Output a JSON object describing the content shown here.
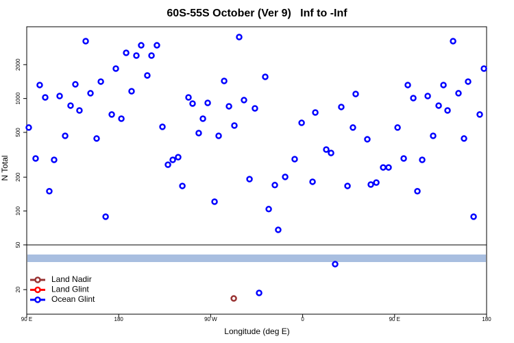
{
  "chart_data": {
    "type": "scatter",
    "title": "60S-55S October (Ver 9)   Inf to -Inf",
    "x_label": "Longitude (deg E)",
    "y_label": "N Total",
    "log_y": true,
    "legend": "bottom-left",
    "xlim": [
      90,
      540
    ],
    "ylim": [
      12.1,
      4345
    ],
    "xticks": [
      {
        "value": 90,
        "label": "90 E"
      },
      180,
      {
        "value": 270,
        "label": "90 W"
      },
      {
        "value": 360,
        "label": "0"
      },
      {
        "value": 450,
        "label": "90 E"
      },
      {
        "value": 540,
        "label": "180"
      }
    ],
    "yticks": [
      20,
      50,
      100,
      200,
      500,
      1000,
      2000
    ],
    "hline": 50,
    "band": {
      "value": 38,
      "color": "#a8bee0"
    },
    "series": [
      {
        "name": "Land Nadir",
        "color": "#993333",
        "x": [
          292.6
        ],
        "values": [
          16.7
        ]
      },
      {
        "name": "Land Glint",
        "color": "#ff0000",
        "x": [],
        "values": []
      },
      {
        "name": "Ocean Glint",
        "color": "#0000ff",
        "x": [
          92,
          98.7,
          102.7,
          108.1,
          112.1,
          116.8,
          122.2,
          127.6,
          132.9,
          137.6,
          141.6,
          147.7,
          152.4,
          158.4,
          162.5,
          167.2,
          173.2,
          177.2,
          182.6,
          187.3,
          192.6,
          197.3,
          202,
          208,
          212.1,
          217.4,
          222.8,
          228.2,
          232.9,
          238.2,
          242.3,
          248.3,
          252.3,
          258.3,
          262.4,
          267.1,
          273.8,
          277.8,
          283.2,
          287.9,
          293.2,
          297.9,
          302.6,
          308,
          313.3,
          323.4,
          326.8,
          332.8,
          336.1,
          342.9,
          352.2,
          359,
          369.7,
          372.4,
          383.1,
          387.8,
          391.8,
          397.8,
          403.9,
          409.2,
          411.9,
          423.3,
          426.7,
          432.1,
          438.8,
          444.1,
          452.9,
          458.9,
          462.9,
          468.3,
          472.3,
          477,
          482.4,
          487.7,
          493.1,
          497.8,
          501.8,
          507.2,
          512.5,
          517.9,
          521.9,
          527.3,
          533.3,
          537.4,
          317.4
        ],
        "values": [
          552,
          293,
          1318,
          1023,
          150,
          285,
          1052,
          466,
          865,
          1337,
          783,
          3236,
          1114,
          441,
          1414,
          89,
          721,
          1845,
          662,
          2547,
          1161,
          2410,
          2972,
          1604,
          2410,
          2972,
          560,
          258,
          285,
          301,
          167,
          1023,
          902,
          493,
          662,
          914,
          121,
          466,
          1433,
          853,
          575,
          3520,
          968,
          192,
          817,
          1559,
          104,
          170,
          68,
          201,
          289,
          608,
          182,
          751,
          352,
          328,
          33.7,
          841,
          167,
          552,
          1097,
          434,
          172,
          179,
          244,
          244,
          552,
          293,
          1318,
          1009,
          150,
          285,
          1052,
          466,
          865,
          1318,
          783,
          3236,
          1114,
          441,
          1414,
          89,
          721,
          1845,
          18.7
        ]
      }
    ]
  }
}
